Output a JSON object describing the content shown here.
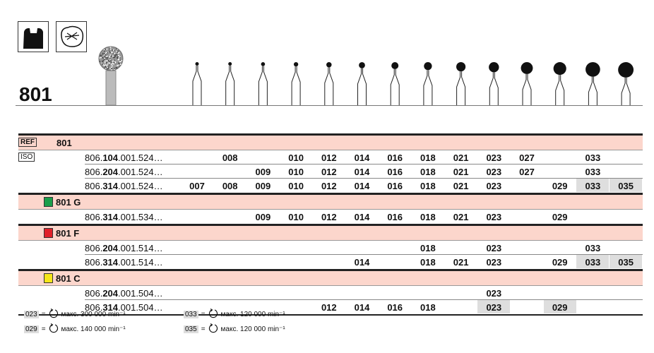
{
  "product": {
    "title": "801",
    "icons": [
      "crown-preparation-icon",
      "cavity-preparation-icon"
    ]
  },
  "columns": [
    "007",
    "008",
    "009",
    "010",
    "012",
    "014",
    "016",
    "018",
    "021",
    "023",
    "027",
    "029",
    "033",
    "035"
  ],
  "table": {
    "ref_tag": "REF",
    "iso_tag": "ISO",
    "groups": [
      {
        "label": "801",
        "swatch": null,
        "rows": [
          {
            "code_pre": "806.",
            "code_bold": "104",
            "code_post": ".001.524…",
            "values": [
              "",
              "008",
              "",
              "010",
              "012",
              "014",
              "016",
              "018",
              "021",
              "023",
              "027",
              "",
              "033",
              ""
            ],
            "highlight": []
          },
          {
            "code_pre": "806.",
            "code_bold": "204",
            "code_post": ".001.524…",
            "values": [
              "",
              "",
              "009",
              "010",
              "012",
              "014",
              "016",
              "018",
              "021",
              "023",
              "027",
              "",
              "033",
              ""
            ],
            "highlight": []
          },
          {
            "code_pre": "806.",
            "code_bold": "314",
            "code_post": ".001.524…",
            "values": [
              "007",
              "008",
              "009",
              "010",
              "012",
              "014",
              "016",
              "018",
              "021",
              "023",
              "",
              "029",
              "033",
              "035"
            ],
            "highlight": [
              "033",
              "035"
            ]
          }
        ]
      },
      {
        "label": "801 G",
        "swatch": "#1a9e4a",
        "rows": [
          {
            "code_pre": "806.",
            "code_bold": "314",
            "code_post": ".001.534…",
            "values": [
              "",
              "",
              "009",
              "010",
              "012",
              "014",
              "016",
              "018",
              "021",
              "023",
              "",
              "029",
              "",
              ""
            ],
            "highlight": []
          }
        ]
      },
      {
        "label": "801 F",
        "swatch": "#e0202a",
        "rows": [
          {
            "code_pre": "806.",
            "code_bold": "204",
            "code_post": ".001.514…",
            "values": [
              "",
              "",
              "",
              "",
              "",
              "",
              "",
              "018",
              "",
              "023",
              "",
              "",
              "033",
              ""
            ],
            "highlight": []
          },
          {
            "code_pre": "806.",
            "code_bold": "314",
            "code_post": ".001.514…",
            "values": [
              "",
              "",
              "",
              "",
              "",
              "014",
              "",
              "018",
              "021",
              "023",
              "",
              "029",
              "033",
              "035"
            ],
            "highlight": [
              "033",
              "035"
            ]
          }
        ]
      },
      {
        "label": "801 C",
        "swatch": "#f5e61a",
        "rows": [
          {
            "code_pre": "806.",
            "code_bold": "204",
            "code_post": ".001.504…",
            "values": [
              "",
              "",
              "",
              "",
              "",
              "",
              "",
              "",
              "",
              "023",
              "",
              "",
              "",
              ""
            ],
            "highlight": []
          },
          {
            "code_pre": "806.",
            "code_bold": "314",
            "code_post": ".001.504…",
            "values": [
              "",
              "",
              "",
              "",
              "012",
              "014",
              "016",
              "018",
              "",
              "023",
              "",
              "029",
              "",
              ""
            ],
            "highlight": [
              "023",
              "029"
            ]
          }
        ]
      }
    ]
  },
  "legend": [
    {
      "size": "023",
      "eq": "=",
      "text": "макс. 300 000 min⁻¹"
    },
    {
      "size": "033",
      "eq": "=",
      "text": "макс. 120 000 min⁻¹"
    },
    {
      "size": "029",
      "eq": "=",
      "text": "макс. 140 000 min⁻¹"
    },
    {
      "size": "035",
      "eq": "=",
      "text": "макс. 120 000 min⁻¹"
    }
  ]
}
